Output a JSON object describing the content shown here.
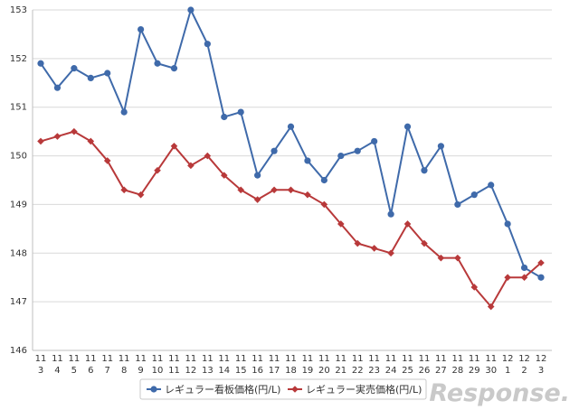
{
  "chart_data": {
    "type": "line",
    "categories": [
      [
        "11",
        "3"
      ],
      [
        "11",
        "4"
      ],
      [
        "11",
        "5"
      ],
      [
        "11",
        "6"
      ],
      [
        "11",
        "7"
      ],
      [
        "11",
        "8"
      ],
      [
        "11",
        "9"
      ],
      [
        "11",
        "10"
      ],
      [
        "11",
        "11"
      ],
      [
        "11",
        "12"
      ],
      [
        "11",
        "13"
      ],
      [
        "11",
        "14"
      ],
      [
        "11",
        "15"
      ],
      [
        "11",
        "16"
      ],
      [
        "11",
        "17"
      ],
      [
        "11",
        "18"
      ],
      [
        "11",
        "19"
      ],
      [
        "11",
        "20"
      ],
      [
        "11",
        "21"
      ],
      [
        "11",
        "22"
      ],
      [
        "11",
        "23"
      ],
      [
        "11",
        "24"
      ],
      [
        "11",
        "25"
      ],
      [
        "11",
        "26"
      ],
      [
        "11",
        "27"
      ],
      [
        "11",
        "28"
      ],
      [
        "11",
        "29"
      ],
      [
        "11",
        "30"
      ],
      [
        "12",
        "1"
      ],
      [
        "12",
        "2"
      ],
      [
        "12",
        "3"
      ]
    ],
    "series": [
      {
        "name": "レギュラー看板価格(円/L)",
        "color": "#3f6aaa",
        "marker": "circle",
        "values": [
          151.9,
          151.4,
          151.8,
          151.6,
          151.7,
          150.9,
          152.6,
          151.9,
          151.8,
          153.0,
          152.3,
          150.8,
          150.9,
          149.6,
          150.1,
          150.6,
          149.9,
          149.5,
          150.0,
          150.1,
          150.3,
          148.8,
          150.6,
          149.7,
          150.2,
          149.0,
          149.2,
          149.4,
          148.6,
          147.7,
          147.5
        ]
      },
      {
        "name": "レギュラー実売価格(円/L)",
        "color": "#b8393a",
        "marker": "diamond",
        "values": [
          150.3,
          150.4,
          150.5,
          150.3,
          149.9,
          149.3,
          149.2,
          149.7,
          150.2,
          149.8,
          150.0,
          149.6,
          149.3,
          149.1,
          149.3,
          149.3,
          149.2,
          149.0,
          148.6,
          148.2,
          148.1,
          148.0,
          148.6,
          148.2,
          147.9,
          147.9,
          147.3,
          146.9,
          147.5,
          147.5,
          147.8
        ]
      }
    ],
    "ylim": [
      146,
      153
    ],
    "yticks": [
      "146",
      "147",
      "148",
      "149",
      "150",
      "151",
      "152",
      "153"
    ],
    "grid": true,
    "legend": "bottom-center"
  },
  "watermark": "Response."
}
